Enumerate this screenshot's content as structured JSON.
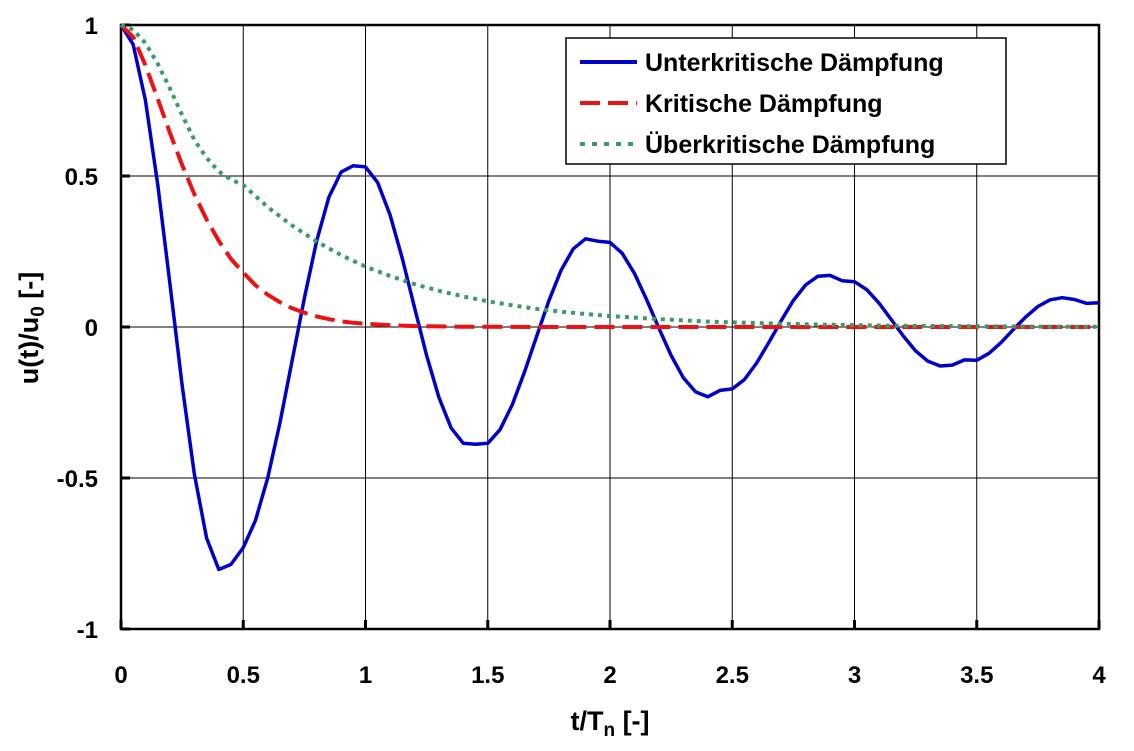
{
  "chart_data": {
    "type": "line",
    "xlabel": {
      "main": "t/T",
      "sub": "n",
      "suffix": " [-]"
    },
    "ylabel": {
      "main": "u(t)/u",
      "sub": "0",
      "suffix": " [-]"
    },
    "xlim": [
      0,
      4
    ],
    "ylim": [
      -1,
      1
    ],
    "xticks": [
      0,
      0.5,
      1,
      1.5,
      2,
      2.5,
      3,
      3.5,
      4
    ],
    "xtick_labels": [
      "0",
      "0.5",
      "1",
      "1.5",
      "2",
      "2.5",
      "3",
      "3.5",
      "4"
    ],
    "yticks": [
      -1,
      -0.5,
      0,
      0.5,
      1
    ],
    "ytick_labels": [
      "-1",
      "-0.5",
      "0",
      "0.5",
      "1"
    ],
    "grid": true,
    "legend_position": "top-right",
    "series": [
      {
        "name": "Unterkritische Dämpfung",
        "color": "#0000cc",
        "style": "solid",
        "x": [
          0,
          0.05,
          0.1,
          0.15,
          0.2,
          0.25,
          0.3,
          0.35,
          0.4,
          0.45,
          0.5,
          0.55,
          0.6,
          0.65,
          0.7,
          0.75,
          0.8,
          0.85,
          0.9,
          0.95,
          1,
          1.05,
          1.1,
          1.15,
          1.2,
          1.25,
          1.3,
          1.35,
          1.4,
          1.45,
          1.5,
          1.55,
          1.6,
          1.65,
          1.7,
          1.75,
          1.8,
          1.85,
          1.9,
          1.95,
          2,
          2.05,
          2.1,
          2.15,
          2.2,
          2.25,
          2.3,
          2.35,
          2.4,
          2.45,
          2.5,
          2.55,
          2.6,
          2.65,
          2.7,
          2.75,
          2.8,
          2.85,
          2.9,
          2.95,
          3,
          3.05,
          3.1,
          3.15,
          3.2,
          3.25,
          3.3,
          3.35,
          3.4,
          3.45,
          3.5,
          3.55,
          3.6,
          3.65,
          3.7,
          3.75,
          3.8,
          3.85,
          3.9,
          3.95,
          4
        ],
        "y": [
          1,
          0.935,
          0.751,
          0.473,
          0.144,
          -0.192,
          -0.486,
          -0.699,
          -0.803,
          -0.786,
          -0.73,
          -0.64,
          -0.5,
          -0.318,
          -0.112,
          0.096,
          0.284,
          0.429,
          0.513,
          0.534,
          0.53,
          0.478,
          0.372,
          0.228,
          0.066,
          -0.094,
          -0.233,
          -0.334,
          -0.385,
          -0.388,
          -0.385,
          -0.34,
          -0.258,
          -0.15,
          -0.031,
          0.087,
          0.188,
          0.259,
          0.292,
          0.284,
          0.28,
          0.244,
          0.177,
          0.09,
          -0.004,
          -0.094,
          -0.168,
          -0.215,
          -0.231,
          -0.21,
          -0.205,
          -0.174,
          -0.119,
          -0.051,
          0.021,
          0.088,
          0.139,
          0.168,
          0.171,
          0.153,
          0.15,
          0.124,
          0.079,
          0.025,
          -0.03,
          -0.079,
          -0.113,
          -0.129,
          -0.126,
          -0.109,
          -0.11,
          -0.087,
          -0.051,
          -0.008,
          0.033,
          0.068,
          0.09,
          0.097,
          0.091,
          0.078,
          0.08
        ]
      },
      {
        "name": "Kritische Dämpfung",
        "color": "#ee1111",
        "style": "dashed",
        "x": [
          0,
          0.05,
          0.1,
          0.15,
          0.2,
          0.25,
          0.3,
          0.35,
          0.4,
          0.45,
          0.5,
          0.55,
          0.6,
          0.65,
          0.7,
          0.75,
          0.8,
          0.85,
          0.9,
          0.95,
          1,
          1.1,
          1.2,
          1.3,
          1.4,
          1.5,
          1.6,
          1.7,
          1.8,
          2,
          2.5,
          3,
          3.5,
          4
        ],
        "y": [
          1,
          0.96,
          0.867,
          0.756,
          0.643,
          0.537,
          0.44,
          0.356,
          0.285,
          0.225,
          0.18,
          0.138,
          0.107,
          0.082,
          0.062,
          0.047,
          0.035,
          0.026,
          0.019,
          0.014,
          0.011,
          0.006,
          0.003,
          0.002,
          0.001,
          0.0005,
          0.0003,
          0.0001,
          0.0001,
          0,
          0,
          0,
          0,
          0
        ]
      },
      {
        "name": "Überkritische Dämpfung",
        "color": "#3a9a6a",
        "style": "dotted",
        "x": [
          0,
          0.05,
          0.1,
          0.15,
          0.2,
          0.25,
          0.3,
          0.35,
          0.4,
          0.45,
          0.5,
          0.6,
          0.7,
          0.8,
          0.9,
          1,
          1.1,
          1.2,
          1.3,
          1.4,
          1.5,
          1.6,
          1.7,
          1.8,
          1.9,
          2,
          2.2,
          2.4,
          2.6,
          2.8,
          3,
          3.2,
          3.4,
          3.6,
          3.8,
          4
        ],
        "y": [
          1,
          0.984,
          0.94,
          0.872,
          0.79,
          0.702,
          0.62,
          0.56,
          0.515,
          0.488,
          0.47,
          0.397,
          0.336,
          0.283,
          0.238,
          0.2,
          0.169,
          0.142,
          0.12,
          0.101,
          0.085,
          0.072,
          0.06,
          0.051,
          0.043,
          0.036,
          0.026,
          0.018,
          0.013,
          0.009,
          0.006,
          0.004,
          0.003,
          0.002,
          0.001,
          0.001
        ]
      }
    ]
  }
}
